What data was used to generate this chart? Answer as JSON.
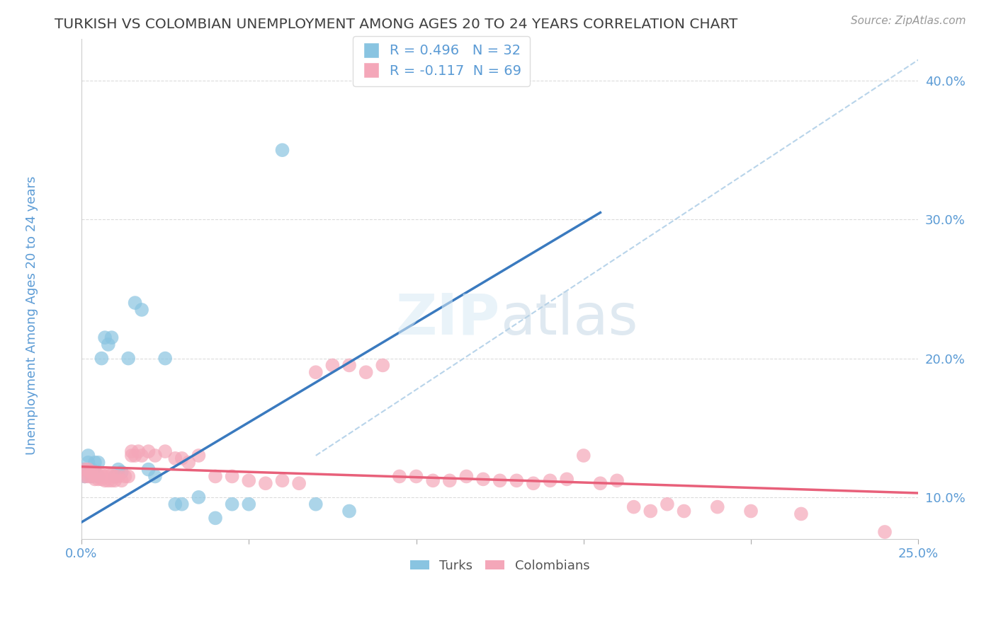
{
  "title": "TURKISH VS COLOMBIAN UNEMPLOYMENT AMONG AGES 20 TO 24 YEARS CORRELATION CHART",
  "source": "Source: ZipAtlas.com",
  "ylabel": "Unemployment Among Ages 20 to 24 years",
  "xlim": [
    0.0,
    0.25
  ],
  "ylim": [
    0.07,
    0.43
  ],
  "blue_color": "#89c4e1",
  "pink_color": "#f4a7b9",
  "blue_line_color": "#3a7abf",
  "pink_line_color": "#e8607a",
  "ref_line_color": "#b8d4ea",
  "R_blue": 0.496,
  "N_blue": 32,
  "R_pink": -0.117,
  "N_pink": 69,
  "legend_label_blue": "Turks",
  "legend_label_pink": "Colombians",
  "turks_x": [
    0.001,
    0.001,
    0.002,
    0.002,
    0.003,
    0.003,
    0.004,
    0.004,
    0.005,
    0.005,
    0.006,
    0.007,
    0.008,
    0.009,
    0.01,
    0.011,
    0.012,
    0.014,
    0.016,
    0.018,
    0.02,
    0.022,
    0.025,
    0.028,
    0.03,
    0.035,
    0.04,
    0.045,
    0.05,
    0.06,
    0.07,
    0.08
  ],
  "turks_y": [
    0.115,
    0.12,
    0.125,
    0.13,
    0.115,
    0.12,
    0.125,
    0.118,
    0.115,
    0.125,
    0.2,
    0.215,
    0.21,
    0.215,
    0.115,
    0.12,
    0.118,
    0.2,
    0.24,
    0.235,
    0.12,
    0.115,
    0.2,
    0.095,
    0.095,
    0.1,
    0.085,
    0.095,
    0.095,
    0.35,
    0.095,
    0.09
  ],
  "colombians_x": [
    0.001,
    0.001,
    0.002,
    0.002,
    0.003,
    0.003,
    0.004,
    0.004,
    0.005,
    0.005,
    0.006,
    0.006,
    0.007,
    0.007,
    0.008,
    0.008,
    0.009,
    0.009,
    0.01,
    0.01,
    0.011,
    0.012,
    0.013,
    0.014,
    0.015,
    0.015,
    0.016,
    0.017,
    0.018,
    0.02,
    0.022,
    0.025,
    0.028,
    0.03,
    0.032,
    0.035,
    0.04,
    0.045,
    0.05,
    0.055,
    0.06,
    0.065,
    0.07,
    0.075,
    0.08,
    0.085,
    0.09,
    0.095,
    0.1,
    0.105,
    0.11,
    0.115,
    0.12,
    0.125,
    0.13,
    0.135,
    0.14,
    0.145,
    0.15,
    0.155,
    0.16,
    0.165,
    0.17,
    0.175,
    0.18,
    0.19,
    0.2,
    0.215,
    0.24
  ],
  "colombians_y": [
    0.115,
    0.12,
    0.115,
    0.12,
    0.115,
    0.118,
    0.113,
    0.118,
    0.113,
    0.116,
    0.113,
    0.116,
    0.112,
    0.115,
    0.112,
    0.116,
    0.112,
    0.116,
    0.112,
    0.115,
    0.115,
    0.112,
    0.115,
    0.115,
    0.13,
    0.133,
    0.13,
    0.133,
    0.13,
    0.133,
    0.13,
    0.133,
    0.128,
    0.128,
    0.125,
    0.13,
    0.115,
    0.115,
    0.112,
    0.11,
    0.112,
    0.11,
    0.19,
    0.195,
    0.195,
    0.19,
    0.195,
    0.115,
    0.115,
    0.112,
    0.112,
    0.115,
    0.113,
    0.112,
    0.112,
    0.11,
    0.112,
    0.113,
    0.13,
    0.11,
    0.112,
    0.093,
    0.09,
    0.095,
    0.09,
    0.093,
    0.09,
    0.088,
    0.075
  ],
  "blue_line_x0": 0.0,
  "blue_line_y0": 0.082,
  "blue_line_x1": 0.155,
  "blue_line_y1": 0.305,
  "pink_line_x0": 0.0,
  "pink_line_y0": 0.122,
  "pink_line_x1": 0.25,
  "pink_line_y1": 0.103,
  "ref_line_x0": 0.07,
  "ref_line_y0": 0.13,
  "ref_line_x1": 0.25,
  "ref_line_y1": 0.415,
  "watermark_zip": "ZIP",
  "watermark_atlas": "atlas",
  "background_color": "#ffffff",
  "grid_color": "#cccccc",
  "axis_label_color": "#5b9bd5",
  "title_color": "#404040"
}
